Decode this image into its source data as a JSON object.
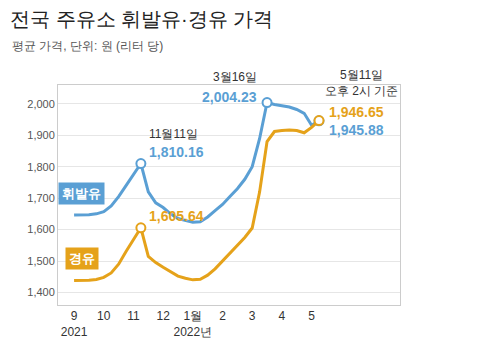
{
  "chart_data": {
    "type": "line",
    "title": "전국 주유소 휘발유·경유 가격",
    "subtitle": "평균 가격, 단위: 원 (리터 당)",
    "categories": [
      "9\n2021",
      null,
      null,
      null,
      "10",
      null,
      null,
      null,
      "11",
      null,
      null,
      null,
      "12",
      null,
      null,
      null,
      "1월\n2022년",
      null,
      null,
      null,
      "2",
      null,
      null,
      null,
      "3",
      null,
      null,
      null,
      "4",
      null,
      null,
      null,
      "5",
      null
    ],
    "series": [
      {
        "name": "휘발유",
        "color": "#5a9fd4",
        "values": [
          1646,
          1646,
          1647,
          1650,
          1657,
          1675,
          1705,
          1740,
          1775,
          1810.16,
          1720,
          1685,
          1670,
          1650,
          1635,
          1628,
          1623,
          1625,
          1640,
          1660,
          1680,
          1705,
          1730,
          1760,
          1800,
          1890,
          2004.23,
          1998,
          1995,
          1990,
          1982,
          1970,
          1932,
          1945.88
        ],
        "value_labels": [
          null,
          null,
          null,
          null,
          null,
          null,
          null,
          null,
          null,
          "1,810.16",
          null,
          null,
          null,
          null,
          null,
          null,
          null,
          null,
          null,
          null,
          null,
          null,
          null,
          null,
          null,
          null,
          "2,004.23",
          null,
          null,
          null,
          null,
          null,
          null,
          "1,945.88"
        ]
      },
      {
        "name": "경유",
        "color": "#e5a21a",
        "values": [
          1438,
          1438,
          1439,
          1441,
          1448,
          1462,
          1490,
          1530,
          1570,
          1605.64,
          1515,
          1495,
          1480,
          1465,
          1452,
          1445,
          1440,
          1442,
          1455,
          1475,
          1500,
          1525,
          1550,
          1575,
          1605,
          1720,
          1880,
          1912,
          1915,
          1917,
          1915,
          1908,
          1925,
          1946.65
        ],
        "value_labels": [
          null,
          null,
          null,
          null,
          null,
          null,
          null,
          null,
          null,
          "1,605.64",
          null,
          null,
          null,
          null,
          null,
          null,
          null,
          null,
          null,
          null,
          null,
          null,
          null,
          null,
          null,
          null,
          null,
          null,
          null,
          null,
          null,
          null,
          null,
          "1,946.65"
        ]
      }
    ],
    "annotations": [
      {
        "x": 9,
        "text": "11월11일"
      },
      {
        "x": 26,
        "text": "3월16일"
      },
      {
        "x": 33,
        "text": "5월11일\n오후 2시 기준"
      }
    ],
    "ylim": [
      1360,
      2060
    ],
    "yticks": [
      {
        "value": 1400,
        "label": "1,400"
      },
      {
        "value": 1500,
        "label": "1,500"
      },
      {
        "value": 1600,
        "label": "1,600"
      },
      {
        "value": 1700,
        "label": "1,700"
      },
      {
        "value": 1800,
        "label": "1,800"
      },
      {
        "value": 1900,
        "label": "1,900"
      },
      {
        "value": 2000,
        "label": "2,000"
      }
    ],
    "grid": true,
    "marker": "circle"
  }
}
